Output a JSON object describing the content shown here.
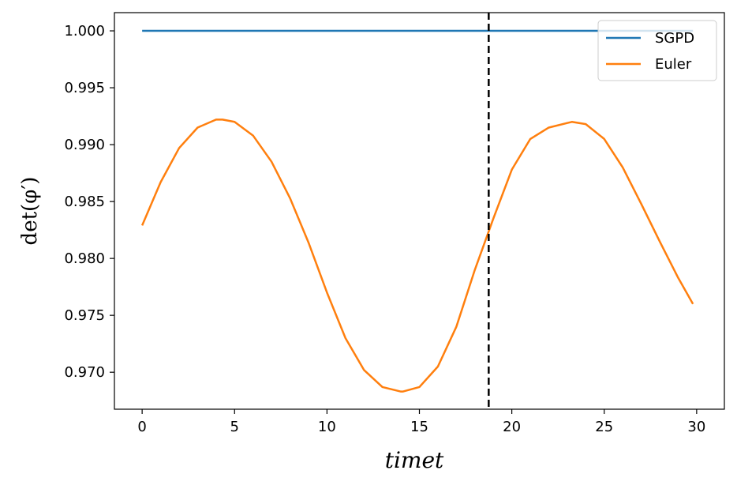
{
  "chart_data": {
    "type": "line",
    "xlabel": "timet",
    "ylabel": "det(φ′)",
    "xlim": [
      -1.5,
      31.5
    ],
    "ylim": [
      0.96675,
      1.0016
    ],
    "xticks": [
      0,
      5,
      10,
      15,
      20,
      25,
      30
    ],
    "yticks": [
      0.97,
      0.975,
      0.98,
      0.985,
      0.99,
      0.995,
      1.0
    ],
    "ytick_labels": [
      "0.970",
      "0.975",
      "0.980",
      "0.985",
      "0.990",
      "0.995",
      "1.000"
    ],
    "grid": false,
    "legend_position": "top-right",
    "vline": {
      "x": 18.75,
      "color": "#000000",
      "style": "dashed"
    },
    "series": [
      {
        "name": "SGPD",
        "color": "#1f77b4",
        "x": [
          0,
          29.8
        ],
        "y": [
          1.0,
          1.0
        ]
      },
      {
        "name": "Euler",
        "color": "#ff7f0e",
        "x": [
          0,
          1,
          2,
          3,
          4,
          4.35,
          5,
          6,
          7,
          8,
          9,
          10,
          11,
          12,
          13,
          14,
          14.1,
          15,
          16,
          17,
          18,
          19,
          20,
          21,
          22,
          23,
          23.25,
          24,
          25,
          26,
          27,
          28,
          29,
          29.8
        ],
        "y": [
          0.9829,
          0.9867,
          0.9897,
          0.9915,
          0.9922,
          0.9922,
          0.992,
          0.9908,
          0.9885,
          0.9853,
          0.9814,
          0.977,
          0.973,
          0.9702,
          0.9687,
          0.9683,
          0.9683,
          0.9687,
          0.9705,
          0.974,
          0.979,
          0.9835,
          0.9878,
          0.9905,
          0.9915,
          0.9919,
          0.992,
          0.9918,
          0.9905,
          0.988,
          0.9848,
          0.9815,
          0.9783,
          0.976
        ]
      }
    ]
  }
}
